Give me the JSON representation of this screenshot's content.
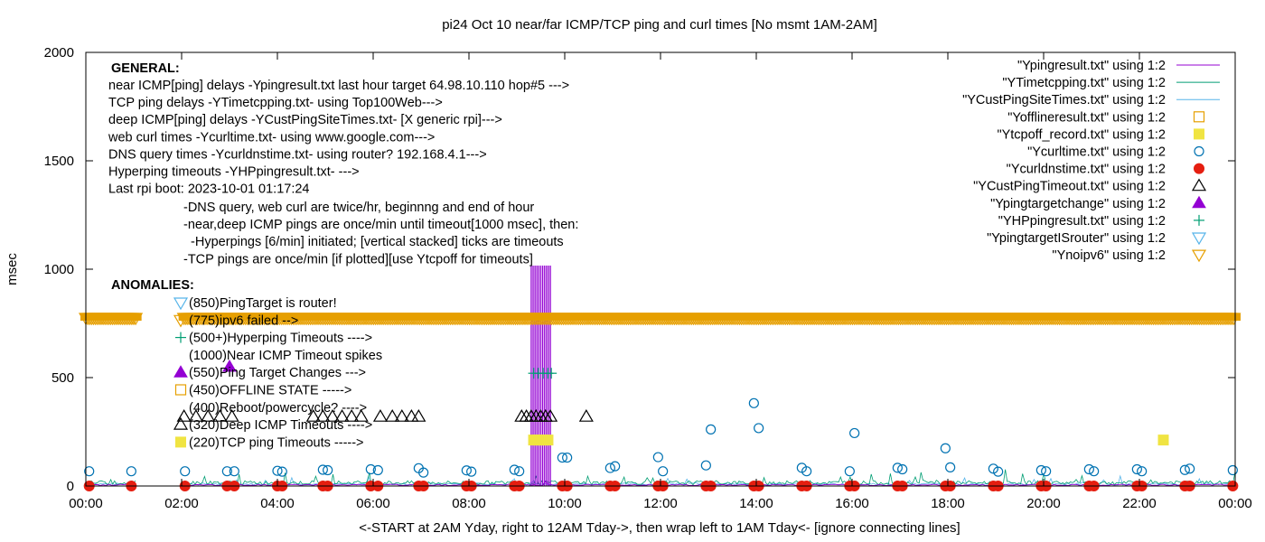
{
  "chart_data": {
    "type": "scatter",
    "title": "pi24 Oct 10  near/far ICMP/TCP ping and curl times [No msmt 1AM-2AM]",
    "xlabel": "<-START at 2AM Yday, right to 12AM Tday->, then wrap left to 1AM Tday<- [ignore connecting lines]",
    "ylabel": "msec",
    "xlim": [
      0,
      24
    ],
    "ylim": [
      0,
      2000
    ],
    "x_ticks": [
      {
        "value": 0,
        "label": "00:00"
      },
      {
        "value": 2,
        "label": "02:00"
      },
      {
        "value": 4,
        "label": "04:00"
      },
      {
        "value": 6,
        "label": "06:00"
      },
      {
        "value": 8,
        "label": "08:00"
      },
      {
        "value": 10,
        "label": "10:00"
      },
      {
        "value": 12,
        "label": "12:00"
      },
      {
        "value": 14,
        "label": "14:00"
      },
      {
        "value": 16,
        "label": "16:00"
      },
      {
        "value": 18,
        "label": "18:00"
      },
      {
        "value": 20,
        "label": "20:00"
      },
      {
        "value": 22,
        "label": "22:00"
      },
      {
        "value": 24,
        "label": "00:00"
      }
    ],
    "y_ticks": [
      {
        "value": 0,
        "label": "0"
      },
      {
        "value": 500,
        "label": "500"
      },
      {
        "value": 1000,
        "label": "1000"
      },
      {
        "value": 1500,
        "label": "1500"
      },
      {
        "value": 2000,
        "label": "2000"
      }
    ],
    "grid": false,
    "legend_position": "top-right",
    "series": [
      {
        "name": "\"Ypingresult.txt\" using 1:2",
        "style": "line",
        "color": "#9400d3"
      },
      {
        "name": "\"YTimetcpping.txt\" using 1:2",
        "style": "line",
        "color": "#009e73"
      },
      {
        "name": "\"YCustPingSiteTimes.txt\" using 1:2",
        "style": "line",
        "color": "#56b4e9"
      },
      {
        "name": "\"Yofflineresult.txt\" using 1:2",
        "style": "square-open",
        "color": "#e69f00",
        "points": []
      },
      {
        "name": "\"Ytcpoff_record.txt\" using 1:2",
        "style": "square-filled",
        "color": "#f0e442",
        "points": [
          [
            9.35,
            212
          ],
          [
            9.45,
            212
          ],
          [
            9.55,
            212
          ],
          [
            9.65,
            212
          ],
          [
            22.5,
            212
          ]
        ]
      },
      {
        "name": "\"Ycurltime.txt\" using 1:2",
        "style": "circle-open",
        "color": "#0072b2",
        "points": [
          [
            0.07,
            68
          ],
          [
            0.95,
            68
          ],
          [
            2.07,
            68
          ],
          [
            2.95,
            68
          ],
          [
            3.1,
            68
          ],
          [
            4,
            70
          ],
          [
            4.1,
            66
          ],
          [
            4.95,
            75
          ],
          [
            5.05,
            73
          ],
          [
            5.95,
            77
          ],
          [
            6.1,
            73
          ],
          [
            6.95,
            82
          ],
          [
            7.05,
            62
          ],
          [
            7.95,
            72
          ],
          [
            8.05,
            66
          ],
          [
            8.95,
            75
          ],
          [
            9.05,
            68
          ],
          [
            9.95,
            131
          ],
          [
            10.05,
            131
          ],
          [
            10.95,
            83
          ],
          [
            11.05,
            91
          ],
          [
            11.95,
            133
          ],
          [
            12.05,
            68
          ],
          [
            12.95,
            95
          ],
          [
            13.05,
            261
          ],
          [
            13.95,
            382
          ],
          [
            14.05,
            267
          ],
          [
            14.95,
            84
          ],
          [
            15.05,
            68
          ],
          [
            15.95,
            68
          ],
          [
            16.05,
            244
          ],
          [
            16.95,
            84
          ],
          [
            17.05,
            77
          ],
          [
            17.95,
            174
          ],
          [
            18.05,
            86
          ],
          [
            18.95,
            80
          ],
          [
            19.05,
            66
          ],
          [
            19.95,
            73
          ],
          [
            20.05,
            68
          ],
          [
            20.95,
            77
          ],
          [
            21.05,
            68
          ],
          [
            21.95,
            77
          ],
          [
            22.05,
            68
          ],
          [
            22.95,
            74
          ],
          [
            23.05,
            80
          ],
          [
            23.95,
            73
          ]
        ]
      },
      {
        "name": "\"Ycurldnstime.txt\" using 1:2",
        "style": "circle-filled",
        "color": "#e51e10",
        "points": [
          [
            0.07,
            0
          ],
          [
            0.95,
            0
          ],
          [
            2.07,
            0
          ],
          [
            2.95,
            0
          ],
          [
            3.1,
            0
          ],
          [
            4,
            0
          ],
          [
            4.1,
            0
          ],
          [
            4.95,
            0
          ],
          [
            5.05,
            0
          ],
          [
            5.95,
            0
          ],
          [
            6.1,
            0
          ],
          [
            6.95,
            0
          ],
          [
            7.05,
            0
          ],
          [
            7.95,
            0
          ],
          [
            8.05,
            0
          ],
          [
            8.95,
            0
          ],
          [
            9.05,
            0
          ],
          [
            9.95,
            0
          ],
          [
            10.05,
            0
          ],
          [
            10.95,
            0
          ],
          [
            11.05,
            0
          ],
          [
            11.95,
            0
          ],
          [
            12.05,
            0
          ],
          [
            12.95,
            0
          ],
          [
            13.05,
            0
          ],
          [
            13.95,
            0
          ],
          [
            14.05,
            0
          ],
          [
            14.95,
            0
          ],
          [
            15.05,
            0
          ],
          [
            15.95,
            0
          ],
          [
            16.05,
            0
          ],
          [
            16.95,
            0
          ],
          [
            17.05,
            0
          ],
          [
            17.95,
            0
          ],
          [
            18.05,
            0
          ],
          [
            18.95,
            0
          ],
          [
            19.05,
            0
          ],
          [
            19.95,
            0
          ],
          [
            20.05,
            0
          ],
          [
            20.95,
            0
          ],
          [
            21.05,
            0
          ],
          [
            21.95,
            0
          ],
          [
            22.05,
            0
          ],
          [
            22.95,
            0
          ],
          [
            23.05,
            0
          ],
          [
            23.95,
            0
          ]
        ]
      },
      {
        "name": "\"YCustPingTimeout.txt\" using 1:2",
        "style": "triangle-up-open",
        "color": "#000000",
        "points": [
          [
            2.05,
            320
          ],
          [
            2.3,
            320
          ],
          [
            2.55,
            320
          ],
          [
            2.8,
            320
          ],
          [
            3.05,
            320
          ],
          [
            4.75,
            320
          ],
          [
            4.95,
            320
          ],
          [
            5.15,
            320
          ],
          [
            5.35,
            320
          ],
          [
            5.55,
            320
          ],
          [
            5.75,
            320
          ],
          [
            6.15,
            320
          ],
          [
            6.4,
            320
          ],
          [
            6.6,
            320
          ],
          [
            6.8,
            320
          ],
          [
            6.95,
            320
          ],
          [
            9.1,
            320
          ],
          [
            9.2,
            320
          ],
          [
            9.3,
            320
          ],
          [
            9.4,
            320
          ],
          [
            9.5,
            320
          ],
          [
            9.6,
            320
          ],
          [
            9.7,
            320
          ],
          [
            10.45,
            320
          ]
        ]
      },
      {
        "name": "\"Ypingtargetchange\" using 1:2",
        "style": "triangle-up-filled",
        "color": "#9400d3",
        "points": [
          [
            3.0,
            550
          ]
        ]
      },
      {
        "name": "\"YHPpingresult.txt\" using 1:2",
        "style": "plus",
        "color": "#009e73",
        "points": [
          [
            9.35,
            520
          ],
          [
            9.45,
            520
          ],
          [
            9.55,
            520
          ],
          [
            9.65,
            520
          ],
          [
            9.72,
            520
          ]
        ]
      },
      {
        "name": "\"YpingtargetISrouter\" using 1:2",
        "style": "triangle-down-open",
        "color": "#56b4e9",
        "points": []
      },
      {
        "name": "\"Ynoipv6\" using 1:2",
        "style": "triangle-down-open-band",
        "color": "#e69f00",
        "band_y": 775,
        "band_segments": [
          [
            0,
            1.05
          ],
          [
            2.05,
            24
          ]
        ]
      }
    ],
    "ping_spike_times": [
      9.3,
      9.34,
      9.38,
      9.42,
      9.46,
      9.5,
      9.54,
      9.58,
      9.62,
      9.66,
      9.7
    ],
    "annotations_general": {
      "heading": "GENERAL:",
      "lines": [
        "near ICMP[ping] delays -Ypingresult.txt last hour target 64.98.10.110 hop#5 --->",
        "TCP ping delays -YTimetcpping.txt- using Top100Web--->",
        "deep ICMP[ping] delays -YCustPingSiteTimes.txt- [X generic rpi]--->",
        "web curl times -Ycurltime.txt- using www.google.com--->",
        "DNS query times -Ycurldnstime.txt- using router? 192.168.4.1--->",
        "Hyperping timeouts -YHPpingresult.txt- --->",
        "Last rpi boot: 2023-10-01 01:17:24"
      ],
      "notes": [
        "-DNS query, web curl are twice/hr, beginnng and end of hour",
        "-near,deep ICMP pings are once/min until timeout[1000 msec], then:",
        "  -Hyperpings [6/min] initiated; [vertical stacked] ticks are timeouts",
        "-TCP pings are once/min [if plotted][use Ytcpoff for timeouts]"
      ]
    },
    "annotations_anomalies": {
      "heading": "ANOMALIES:",
      "items": [
        {
          "text": "(850)PingTarget is router!",
          "marker": "triangle-down-open",
          "color": "#56b4e9",
          "y": 850
        },
        {
          "text": "(775)ipv6 failed -->",
          "marker": "triangle-down-open",
          "color": "#e69f00",
          "y": 775
        },
        {
          "text": "(500+)Hyperping Timeouts ---->",
          "marker": "plus",
          "color": "#009e73",
          "y": 700
        },
        {
          "text": "(1000)Near ICMP Timeout spikes",
          "marker": "none",
          "color": "#000000",
          "y": 625
        },
        {
          "text": "(550)Ping Target Changes --->",
          "marker": "triangle-up-filled",
          "color": "#9400d3",
          "y": 550
        },
        {
          "text": "(450)OFFLINE STATE ----->",
          "marker": "square-open",
          "color": "#e69f00",
          "y": 450
        },
        {
          "text": "(400)Reboot/powercycle? ---->",
          "marker": "none",
          "color": "#000000",
          "y": 400
        },
        {
          "text": "(320)Deep ICMP Timeouts ---->",
          "marker": "triangle-up-open",
          "color": "#000000",
          "y": 320
        },
        {
          "text": "(220)TCP ping Timeouts ----->",
          "marker": "square-filled",
          "color": "#f0e442",
          "y": 220
        }
      ]
    }
  }
}
